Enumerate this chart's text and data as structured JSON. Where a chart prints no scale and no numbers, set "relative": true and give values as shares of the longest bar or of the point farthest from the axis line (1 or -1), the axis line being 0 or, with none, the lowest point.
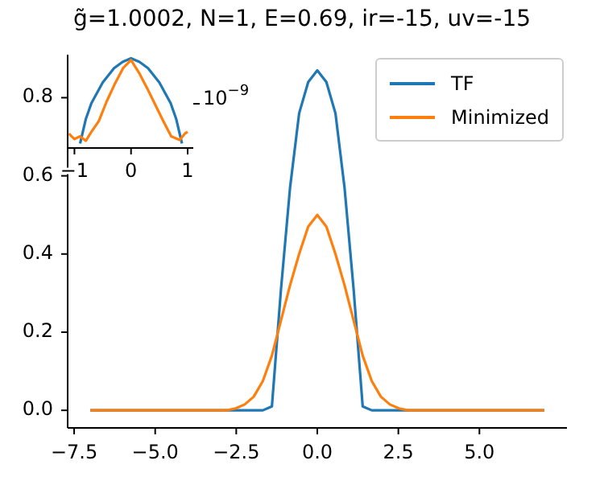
{
  "chart_data": [
    {
      "type": "line",
      "title": "g̃=1.0002, N=1, E=0.69, ir=-15, uv=-15",
      "x": [
        -7,
        -2.8,
        -2.52,
        -2.24,
        -1.96,
        -1.68,
        -1.4,
        -1.12,
        -0.84,
        -0.56,
        -0.28,
        0,
        0.28,
        0.56,
        0.84,
        1.12,
        1.4,
        1.68,
        1.96,
        2.24,
        2.52,
        2.8,
        7
      ],
      "series": [
        {
          "name": "TF",
          "color": "#1f77b4",
          "values": [
            0,
            0,
            0,
            0,
            0,
            0,
            0.01,
            0.31,
            0.57,
            0.76,
            0.84,
            0.87,
            0.84,
            0.76,
            0.57,
            0.31,
            0.01,
            0,
            0,
            0,
            0,
            0,
            0
          ]
        },
        {
          "name": "Minimized",
          "color": "#ff7f0e",
          "values": [
            0,
            0,
            0.005,
            0.015,
            0.035,
            0.075,
            0.14,
            0.23,
            0.32,
            0.4,
            0.47,
            0.5,
            0.47,
            0.4,
            0.32,
            0.23,
            0.14,
            0.075,
            0.035,
            0.015,
            0.005,
            0,
            0
          ]
        }
      ],
      "xlim": [
        -7.7,
        7.7
      ],
      "xticks": [
        {
          "value": -7.5,
          "label": "−7.5"
        },
        {
          "value": -5,
          "label": "−5.0"
        },
        {
          "value": -2.5,
          "label": "−2.5"
        },
        {
          "value": 0,
          "label": "0.0"
        },
        {
          "value": 2.5,
          "label": "2.5"
        },
        {
          "value": 5,
          "label": "5.0"
        }
      ],
      "ylim": [
        -0.045,
        0.91
      ],
      "yticks": [
        {
          "value": 0,
          "label": "0.0"
        },
        {
          "value": 0.2,
          "label": "0.2"
        },
        {
          "value": 0.4,
          "label": "0.4"
        },
        {
          "value": 0.6,
          "label": "0.6"
        },
        {
          "value": 0.8,
          "label": "0.8"
        }
      ],
      "legend": "top right"
    },
    {
      "type": "line",
      "relative": true,
      "annotations": [
        "10$^{−9}$"
      ],
      "series": [
        {
          "color": "#1f77b4",
          "x": [
            -0.9,
            -0.8,
            -0.7,
            -0.5,
            -0.3,
            -0.15,
            0,
            0.15,
            0.3,
            0.5,
            0.7,
            0.8,
            0.9
          ],
          "values": [
            0.05,
            0.32,
            0.5,
            0.73,
            0.89,
            0.96,
            1,
            0.96,
            0.89,
            0.73,
            0.5,
            0.32,
            0.05
          ]
        },
        {
          "color": "#ff7f0e",
          "x": [
            -1.1,
            -1.0,
            -0.9,
            -0.8,
            -0.7,
            -0.57,
            -0.43,
            -0.29,
            -0.14,
            0,
            0.14,
            0.29,
            0.43,
            0.57,
            0.71,
            0.86,
            0.95,
            1.0
          ],
          "values": [
            0.16,
            0.1,
            0.13,
            0.08,
            0.18,
            0.3,
            0.52,
            0.71,
            0.89,
            0.98,
            0.84,
            0.66,
            0.48,
            0.3,
            0.13,
            0.09,
            0.16,
            0.18
          ]
        }
      ],
      "xlim": [
        -1.12,
        1.1
      ],
      "xticks": [
        {
          "value": -1,
          "label": "−1"
        },
        {
          "value": 0,
          "label": "0"
        },
        {
          "value": 1,
          "label": "1"
        }
      ]
    }
  ]
}
